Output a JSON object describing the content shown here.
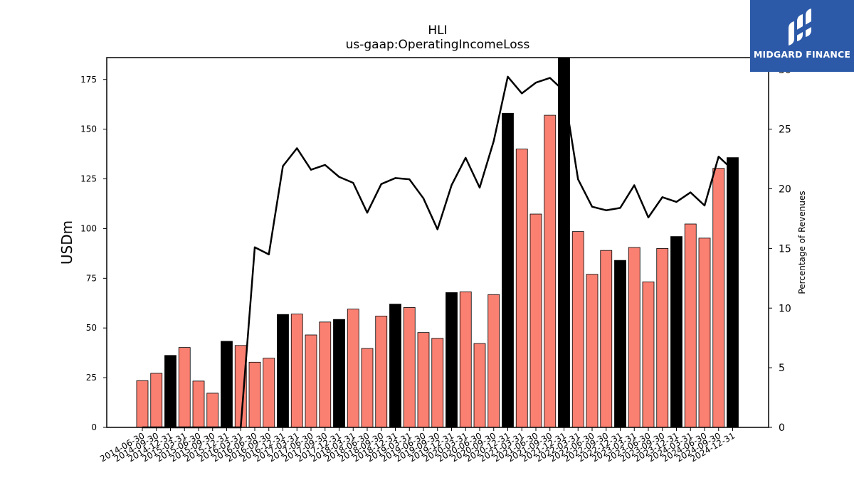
{
  "chart_data": {
    "type": "bar",
    "title": "HLI",
    "subtitle": "us-gaap:OperatingIncomeLoss",
    "ylabel": "USDm",
    "y2label": "Percentage of Revenues",
    "ylim": [
      0,
      186
    ],
    "y2lim": [
      0,
      31
    ],
    "yticks": [
      0,
      25,
      50,
      75,
      100,
      125,
      150,
      175
    ],
    "y2ticks": [
      0,
      5,
      10,
      15,
      20,
      25,
      30
    ],
    "categories": [
      "2014-06-30",
      "2014-09-30",
      "2014-12-31",
      "2015-03-31",
      "2015-06-30",
      "2015-09-30",
      "2015-12-31",
      "2016-03-31",
      "2016-06-30",
      "2016-09-30",
      "2016-12-31",
      "2017-03-31",
      "2017-06-30",
      "2017-09-30",
      "2017-12-31",
      "2018-03-31",
      "2018-06-30",
      "2018-09-30",
      "2018-12-31",
      "2019-03-31",
      "2019-06-30",
      "2019-09-30",
      "2019-12-31",
      "2020-03-31",
      "2020-06-30",
      "2020-09-30",
      "2020-12-31",
      "2021-03-31",
      "2021-06-30",
      "2021-09-30",
      "2021-12-31",
      "2022-03-31",
      "2022-06-30",
      "2022-09-30",
      "2022-12-31",
      "2023-03-31",
      "2023-06-30",
      "2023-09-30",
      "2023-12-31",
      "2024-03-31",
      "2024-06-30",
      "2024-09-30",
      "2024-12-31"
    ],
    "series": [
      {
        "type": "bar",
        "axis": "left",
        "values": [
          23.5,
          27.2,
          36.2,
          40.2,
          23.3,
          17.2,
          43.3,
          41.2,
          32.8,
          34.8,
          56.8,
          57.0,
          46.5,
          53.0,
          54.3,
          59.5,
          39.7,
          56.0,
          62.0,
          60.3,
          47.7,
          44.8,
          67.8,
          68.2,
          42.2,
          66.8,
          158.0,
          140.0,
          107.3,
          157.0,
          186.0,
          98.5,
          77.0,
          89.0,
          84.0,
          90.5,
          73.2,
          90.0,
          96.0,
          102.3,
          95.2,
          130.3,
          135.7
        ],
        "highlight": [
          false,
          false,
          true,
          false,
          false,
          false,
          true,
          false,
          false,
          false,
          true,
          false,
          false,
          false,
          true,
          false,
          false,
          false,
          true,
          false,
          false,
          false,
          true,
          false,
          false,
          false,
          true,
          false,
          false,
          false,
          true,
          false,
          false,
          false,
          true,
          false,
          false,
          false,
          true,
          false,
          false,
          false,
          true
        ],
        "color": "#fa8072",
        "highlight_color": "#000000"
      },
      {
        "type": "line",
        "axis": "right",
        "values": [
          0.0,
          0.0,
          0.0,
          0.0,
          0.0,
          0.0,
          0.0,
          0.0,
          15.1,
          14.5,
          21.9,
          23.4,
          21.6,
          22.0,
          21.0,
          20.5,
          18.0,
          20.4,
          20.9,
          20.8,
          19.2,
          16.6,
          20.3,
          22.6,
          20.1,
          24.0,
          29.4,
          28.0,
          28.9,
          29.3,
          28.2,
          20.8,
          18.5,
          18.2,
          18.4,
          20.3,
          17.6,
          19.3,
          18.9,
          19.7,
          18.6,
          22.7,
          21.6
        ],
        "color": "#000000"
      }
    ],
    "grid": false,
    "legend": "none"
  },
  "brand": {
    "logo_text": "MIDGARD FINANCE",
    "logo_color": "#2c5aa8"
  }
}
